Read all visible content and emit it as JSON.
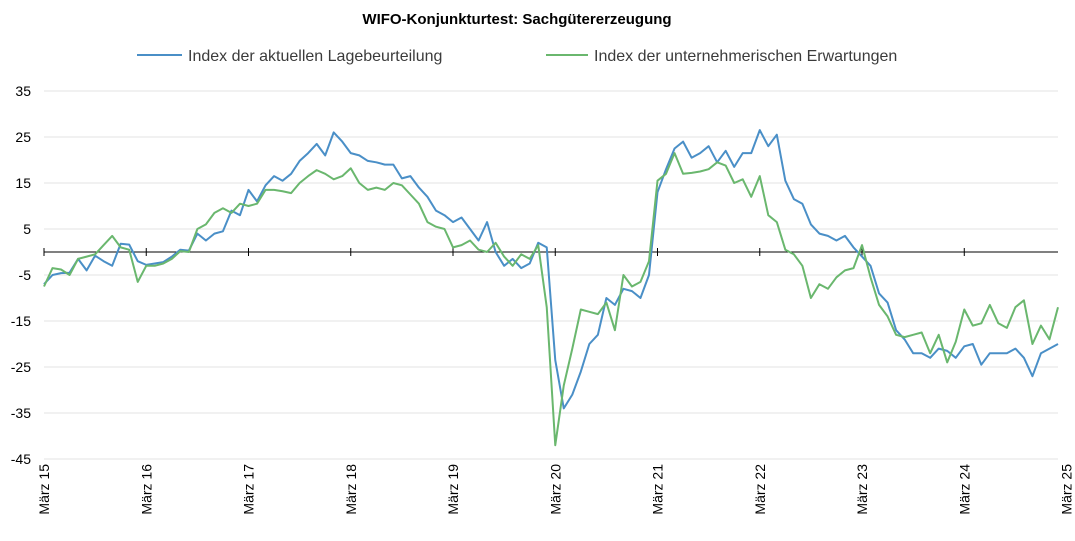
{
  "chart_data": {
    "type": "line",
    "title": "WIFO-Konjunkturtest: Sachgütererzeugung",
    "xlabel": "",
    "ylabel": "",
    "ylim": [
      -45,
      35
    ],
    "yticks": [
      35,
      25,
      15,
      5,
      -5,
      -15,
      -25,
      -35,
      -45
    ],
    "grid": true,
    "legend_position": "top",
    "x_start": "2015-03",
    "x_end": "2025-03",
    "x_tick_labels": [
      "März 15",
      "März 16",
      "März 17",
      "März 18",
      "März 19",
      "März 20",
      "März 21",
      "März 22",
      "März 23",
      "März 24",
      "März 25"
    ],
    "series": [
      {
        "name": "Index der aktuellen Lagebeurteilung",
        "color": "#4a8fc7",
        "values": [
          -7.0,
          -5.0,
          -4.6,
          -4.5,
          -1.5,
          -4.0,
          -0.8,
          -2.0,
          -3.0,
          1.8,
          1.6,
          -2.0,
          -2.8,
          -2.5,
          -2.2,
          -1.0,
          0.5,
          0.3,
          4.0,
          2.5,
          4.0,
          4.5,
          9.0,
          8.0,
          13.5,
          11.0,
          14.5,
          16.5,
          15.5,
          17.0,
          19.8,
          21.5,
          23.5,
          21.0,
          26.0,
          24.0,
          21.5,
          21.0,
          19.8,
          19.5,
          19.0,
          19.0,
          16.0,
          16.5,
          14.0,
          12.0,
          9.0,
          8.0,
          6.5,
          7.5,
          5.0,
          2.5,
          6.5,
          0.0,
          -3.0,
          -1.5,
          -3.5,
          -2.5,
          2.0,
          1.0,
          -23.5,
          -34.0,
          -31.0,
          -26.0,
          -20.0,
          -18.0,
          -10.0,
          -11.5,
          -8.0,
          -8.5,
          -10.0,
          -5.0,
          13.0,
          18.0,
          22.5,
          24.0,
          20.5,
          21.5,
          23.0,
          19.5,
          22.0,
          18.5,
          21.5,
          21.5,
          26.5,
          23.0,
          25.5,
          15.5,
          11.5,
          10.5,
          6.0,
          4.0,
          3.5,
          2.5,
          3.5,
          1.0,
          -1.0,
          -3.0,
          -9.0,
          -11.0,
          -17.0,
          -19.0,
          -22.0,
          -22.0,
          -23.0,
          -21.0,
          -21.5,
          -23.0,
          -20.5,
          -20.0,
          -24.5,
          -22.0,
          -22.0,
          -22.0,
          -21.0,
          -23.0,
          -27.0,
          -22.0,
          -21.0,
          -20.0
        ]
      },
      {
        "name": "Index der unternehmerischen Erwartungen",
        "color": "#6ab76e",
        "values": [
          -7.5,
          -3.5,
          -3.8,
          -5.0,
          -1.5,
          -1.0,
          -0.5,
          1.5,
          3.5,
          1.0,
          0.5,
          -6.5,
          -3.0,
          -3.0,
          -2.5,
          -1.5,
          0.2,
          0.0,
          5.0,
          6.0,
          8.5,
          9.5,
          8.5,
          10.5,
          10.0,
          10.5,
          13.5,
          13.5,
          13.2,
          12.8,
          15.0,
          16.5,
          17.8,
          17.0,
          15.8,
          16.5,
          18.2,
          15.0,
          13.5,
          14.0,
          13.5,
          15.0,
          14.5,
          12.5,
          10.5,
          6.5,
          5.5,
          5.0,
          1.0,
          1.5,
          2.5,
          0.5,
          0.0,
          2.0,
          -1.0,
          -3.0,
          -0.5,
          -1.5,
          1.5,
          -12.0,
          -42.0,
          -29.0,
          -21.0,
          -12.5,
          -13.0,
          -13.5,
          -11.0,
          -17.0,
          -5.0,
          -7.5,
          -6.5,
          -2.0,
          15.5,
          17.0,
          21.5,
          17.0,
          17.2,
          17.5,
          18.0,
          19.5,
          18.8,
          15.0,
          15.8,
          12.0,
          16.5,
          8.0,
          6.5,
          0.5,
          -0.5,
          -3.0,
          -10.0,
          -7.0,
          -8.0,
          -5.5,
          -4.0,
          -3.5,
          1.5,
          -5.5,
          -11.5,
          -14.0,
          -18.0,
          -18.5,
          -18.0,
          -17.5,
          -22.0,
          -18.0,
          -24.0,
          -19.5,
          -12.5,
          -16.0,
          -15.5,
          -11.5,
          -15.5,
          -16.5,
          -12.0,
          -10.5,
          -20.0,
          -16.0,
          -19.0,
          -12.0
        ]
      }
    ]
  }
}
